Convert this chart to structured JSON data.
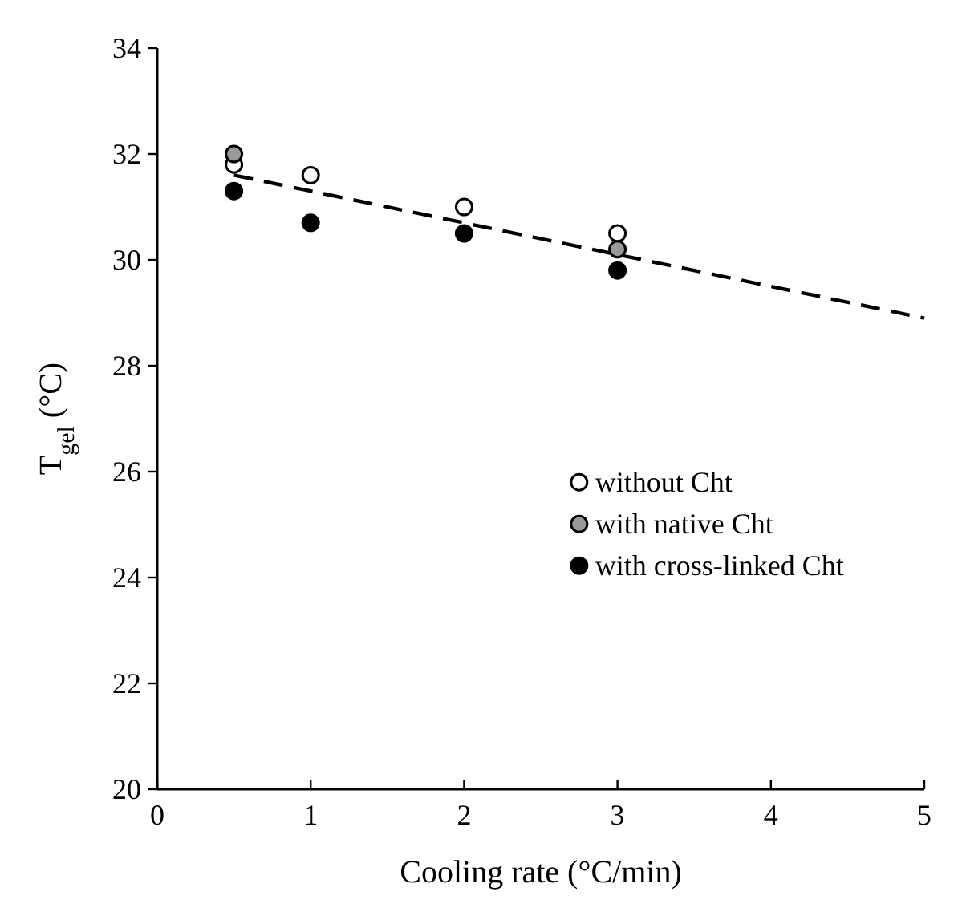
{
  "chart_data": {
    "type": "scatter",
    "xlabel": "Cooling rate (°C/min)",
    "ylabel": "T$_{gel}$ (°C)",
    "xlim": [
      0,
      5
    ],
    "xticks": [
      0,
      1,
      2,
      3,
      4,
      5
    ],
    "ylim": [
      20,
      34
    ],
    "yticks": [
      20,
      22,
      24,
      26,
      28,
      30,
      32,
      34
    ],
    "legend": "right",
    "marker": "circle",
    "grid": false,
    "series": [
      {
        "name": "without Cht",
        "color": "#ffffff",
        "x": [
          0.5,
          1,
          2,
          3
        ],
        "values": [
          31.8,
          31.6,
          31.0,
          30.5
        ]
      },
      {
        "name": "with native Cht",
        "color": "#999999",
        "x": [
          0.5,
          3
        ],
        "values": [
          32.0,
          30.2
        ]
      },
      {
        "name": "with cross-linked Cht",
        "color": "#000000",
        "x": [
          0.5,
          1,
          2,
          3
        ],
        "values": [
          31.3,
          30.7,
          30.5,
          29.8
        ]
      },
      {
        "type": "line",
        "color": "#000000",
        "line_style": "dashed",
        "marker": "none",
        "x": [
          0.5,
          5
        ],
        "values": [
          31.6,
          28.9
        ]
      }
    ]
  }
}
